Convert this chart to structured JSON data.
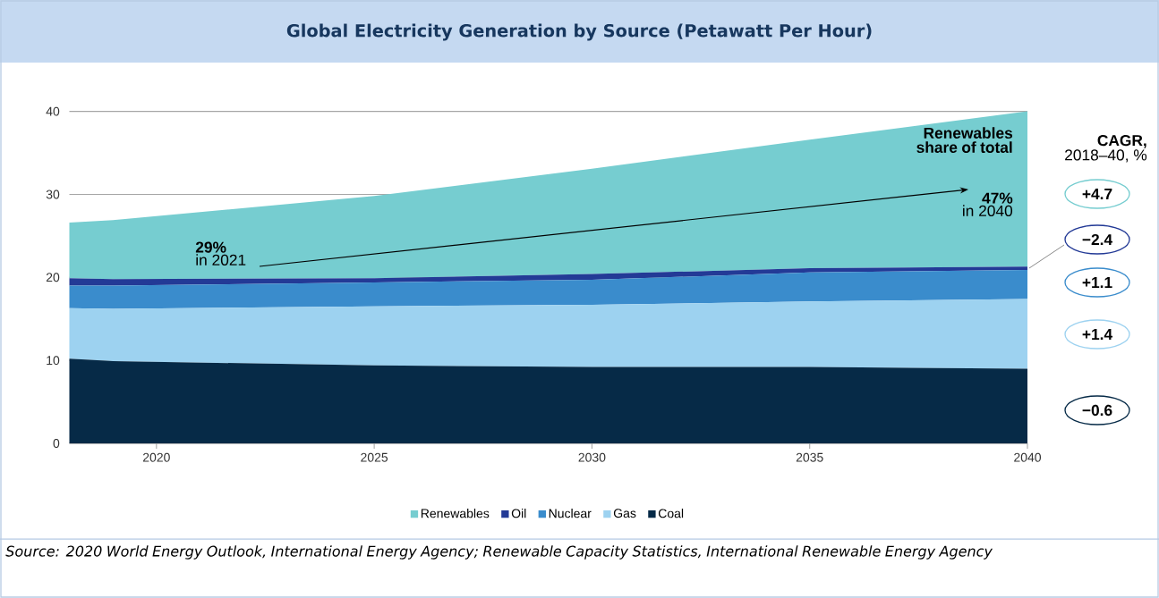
{
  "chart_data": {
    "type": "area",
    "title": "Global Electricity Generation by Source (Petawatt Per Hour)",
    "x": [
      2018,
      2019,
      2025,
      2030,
      2035,
      2040
    ],
    "stacked": true,
    "series": [
      {
        "name": "Coal",
        "color": "#062a47",
        "values": [
          10.2,
          9.9,
          9.4,
          9.2,
          9.2,
          9.0
        ]
      },
      {
        "name": "Gas",
        "color": "#9dd2f0",
        "values": [
          6.1,
          6.3,
          7.1,
          7.5,
          7.9,
          8.4
        ]
      },
      {
        "name": "Nuclear",
        "color": "#3a8ccc",
        "values": [
          2.7,
          2.8,
          2.9,
          3.0,
          3.5,
          3.5
        ]
      },
      {
        "name": "Oil",
        "color": "#233a96",
        "values": [
          0.9,
          0.8,
          0.5,
          0.7,
          0.5,
          0.4
        ]
      },
      {
        "name": "Renewables",
        "color": "#76cdd0",
        "values": [
          6.7,
          7.1,
          9.9,
          12.7,
          15.5,
          18.7
        ]
      }
    ],
    "xlim": [
      2018,
      2040
    ],
    "ylim": [
      0,
      40
    ],
    "xticks": [
      2020,
      2025,
      2030,
      2035,
      2040
    ],
    "yticks": [
      0,
      10,
      20,
      30,
      40
    ],
    "grid": "y",
    "legend": "bottom",
    "annotations": [
      "Renewables share of total",
      "29%",
      "in 2021",
      "47%",
      "in 2040",
      "CAGR,",
      "2018–40, %",
      "+4.7",
      "−2.4",
      "+1.1",
      "+1.4",
      "−0.6",
      "Source: 2020 World Energy Outlook, International Energy Agency; Renewable Capacity Statistics, International Renewable Energy Agency"
    ]
  }
}
